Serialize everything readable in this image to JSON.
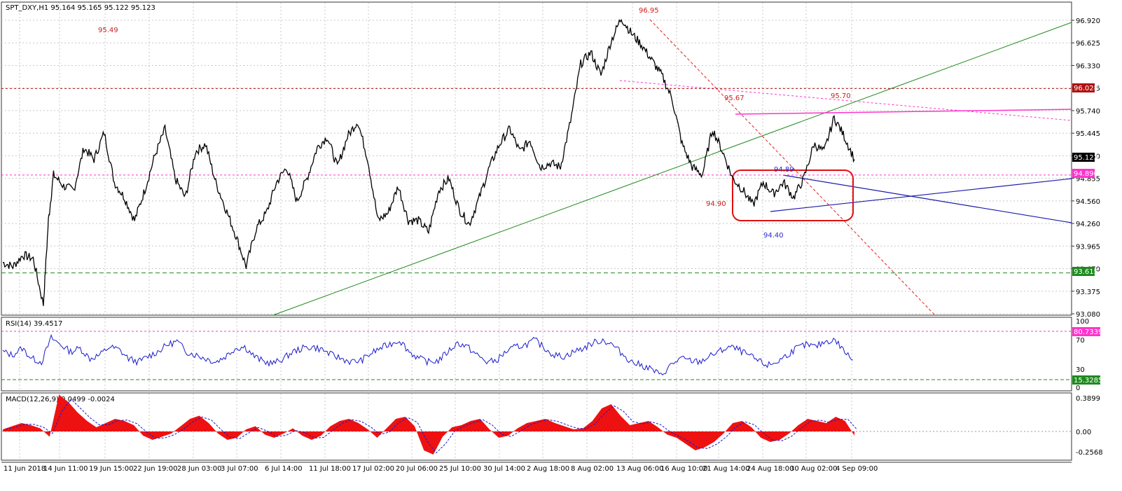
{
  "header": {
    "symbol_info": "SPT_DXY,H1  95.164 95.165 95.122 95.123",
    "rsi_label": "RSI(14) 39.4517",
    "macd_label": "MACD(12,26,9) 0.0499 -0.0024"
  },
  "chart_data": [
    {
      "type": "line",
      "panel": "price",
      "ylim": [
        93.08,
        97.0
      ],
      "y_ticks": [
        "96.920",
        "96.625",
        "96.330",
        "96.035",
        "95.740",
        "95.445",
        "95.150",
        "94.855",
        "94.560",
        "94.260",
        "93.965",
        "93.670",
        "93.375",
        "93.080"
      ],
      "x_ticks": [
        "11 Jun 2018",
        "14 Jun 11:00",
        "19 Jun 15:00",
        "22 Jun 19:00",
        "28 Jun 03:00",
        "3 Jul 07:00",
        "6 Jul 14:00",
        "11 Jul 18:00",
        "17 Jul 02:00",
        "20 Jul 06:00",
        "25 Jul 10:00",
        "30 Jul 14:00",
        "2 Aug 18:00",
        "8 Aug 02:00",
        "13 Aug 06:00",
        "16 Aug 10:00",
        "21 Aug 14:00",
        "24 Aug 18:00",
        "30 Aug 02:00",
        "4 Sep 09:00"
      ],
      "price_points": [
        [
          0,
          93.75
        ],
        [
          2,
          93.7
        ],
        [
          4,
          93.85
        ],
        [
          6,
          93.8
        ],
        [
          8,
          93.2
        ],
        [
          9,
          94.3
        ],
        [
          10,
          94.9
        ],
        [
          12,
          94.75
        ],
        [
          14,
          94.7
        ],
        [
          16,
          95.25
        ],
        [
          18,
          95.1
        ],
        [
          20,
          95.45
        ],
        [
          22,
          94.8
        ],
        [
          24,
          94.6
        ],
        [
          26,
          94.3
        ],
        [
          28,
          94.7
        ],
        [
          30,
          95.15
        ],
        [
          32,
          95.5
        ],
        [
          34,
          94.85
        ],
        [
          36,
          94.6
        ],
        [
          38,
          95.2
        ],
        [
          40,
          95.3
        ],
        [
          42,
          94.8
        ],
        [
          44,
          94.45
        ],
        [
          46,
          94.1
        ],
        [
          48,
          93.7
        ],
        [
          50,
          94.2
        ],
        [
          52,
          94.4
        ],
        [
          54,
          94.8
        ],
        [
          56,
          95.0
        ],
        [
          58,
          94.55
        ],
        [
          60,
          94.85
        ],
        [
          62,
          95.25
        ],
        [
          64,
          95.4
        ],
        [
          66,
          95.0
        ],
        [
          68,
          95.4
        ],
        [
          70,
          95.6
        ],
        [
          72,
          95.1
        ],
        [
          74,
          94.3
        ],
        [
          76,
          94.4
        ],
        [
          78,
          94.75
        ],
        [
          80,
          94.3
        ],
        [
          82,
          94.3
        ],
        [
          84,
          94.15
        ],
        [
          86,
          94.7
        ],
        [
          88,
          94.85
        ],
        [
          90,
          94.45
        ],
        [
          92,
          94.25
        ],
        [
          94,
          94.6
        ],
        [
          96,
          95.0
        ],
        [
          98,
          95.3
        ],
        [
          100,
          95.5
        ],
        [
          102,
          95.2
        ],
        [
          104,
          95.35
        ],
        [
          106,
          95.0
        ],
        [
          108,
          95.05
        ],
        [
          110,
          95.0
        ],
        [
          112,
          95.6
        ],
        [
          114,
          96.35
        ],
        [
          116,
          96.5
        ],
        [
          118,
          96.2
        ],
        [
          120,
          96.65
        ],
        [
          122,
          96.95
        ],
        [
          124,
          96.75
        ],
        [
          126,
          96.6
        ],
        [
          128,
          96.4
        ],
        [
          130,
          96.2
        ],
        [
          132,
          95.9
        ],
        [
          134,
          95.3
        ],
        [
          136,
          95.0
        ],
        [
          138,
          94.9
        ],
        [
          140,
          95.5
        ],
        [
          142,
          95.2
        ],
        [
          144,
          94.85
        ],
        [
          146,
          94.7
        ],
        [
          148,
          94.5
        ],
        [
          150,
          94.8
        ],
        [
          152,
          94.65
        ],
        [
          154,
          94.8
        ],
        [
          156,
          94.6
        ],
        [
          158,
          94.85
        ],
        [
          160,
          95.3
        ],
        [
          162,
          95.2
        ],
        [
          164,
          95.65
        ],
        [
          166,
          95.4
        ],
        [
          168,
          95.1
        ]
      ],
      "annotations": {
        "high_label": "96.95",
        "left_label": "95.49",
        "label_9567": "95.67",
        "label_9570": "95.70",
        "label_9489": "94.89",
        "label_9490": "94.90",
        "label_9440": "94.40"
      },
      "levels": {
        "upper_dotted": "96.028",
        "pink_dotted": "94.896",
        "green_dashed": "93.615",
        "current": "95.123"
      }
    },
    {
      "type": "line",
      "panel": "rsi",
      "ylim": [
        0,
        100
      ],
      "y_ticks": [
        "100",
        "70",
        "30",
        "0"
      ],
      "levels": {
        "upper": "80.7339",
        "lower": "15.3285"
      },
      "values": [
        55,
        50,
        60,
        45,
        40,
        75,
        65,
        55,
        60,
        45,
        50,
        62,
        58,
        45,
        40,
        48,
        55,
        65,
        70,
        55,
        50,
        45,
        40,
        48,
        60,
        62,
        48,
        40,
        38,
        45,
        55,
        60,
        62,
        58,
        50,
        45,
        40,
        42,
        52,
        60,
        66,
        72,
        55,
        45,
        40,
        42,
        55,
        68,
        62,
        50,
        40,
        42,
        55,
        62,
        65,
        72,
        60,
        50,
        48,
        55,
        60,
        68,
        72,
        65,
        52,
        40,
        35,
        30,
        20,
        35,
        45,
        42,
        40,
        48,
        55,
        62,
        58,
        50,
        42,
        35,
        40,
        50,
        60,
        65,
        62,
        70,
        72,
        55,
        40
      ]
    },
    {
      "type": "bar",
      "panel": "macd",
      "ylim": [
        -0.32,
        0.42
      ],
      "y_ticks": [
        "0.3899",
        "0.00",
        "-0.2568"
      ],
      "values": [
        0.02,
        0.05,
        0.08,
        0.06,
        0.03,
        -0.05,
        0.35,
        0.28,
        0.18,
        0.1,
        0.04,
        0.08,
        0.12,
        0.1,
        0.06,
        -0.04,
        -0.08,
        -0.05,
        -0.02,
        0.05,
        0.12,
        0.15,
        0.08,
        -0.02,
        -0.08,
        -0.06,
        0.02,
        0.05,
        -0.03,
        -0.06,
        -0.02,
        0.03,
        -0.04,
        -0.08,
        -0.04,
        0.05,
        0.1,
        0.12,
        0.08,
        0.02,
        -0.06,
        0.03,
        0.12,
        0.14,
        0.05,
        -0.18,
        -0.22,
        -0.05,
        0.04,
        0.06,
        0.1,
        0.12,
        0.02,
        -0.06,
        -0.04,
        0.03,
        0.08,
        0.1,
        0.12,
        0.08,
        0.05,
        0.02,
        0.03,
        0.1,
        0.22,
        0.26,
        0.15,
        0.06,
        0.08,
        0.1,
        0.04,
        -0.03,
        -0.06,
        -0.12,
        -0.18,
        -0.15,
        -0.1,
        -0.02,
        0.08,
        0.1,
        0.04,
        -0.06,
        -0.1,
        -0.08,
        -0.02,
        0.06,
        0.12,
        0.1,
        0.08,
        0.14,
        0.1,
        -0.04
      ]
    }
  ]
}
